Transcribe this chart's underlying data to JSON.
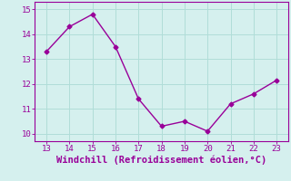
{
  "x": [
    13,
    14,
    15,
    16,
    17,
    18,
    19,
    20,
    21,
    22,
    23
  ],
  "y": [
    13.3,
    14.3,
    14.8,
    13.5,
    11.4,
    10.3,
    10.5,
    10.1,
    11.2,
    11.6,
    12.15
  ],
  "xlim": [
    12.5,
    23.5
  ],
  "ylim": [
    9.7,
    15.3
  ],
  "xticks": [
    13,
    14,
    15,
    16,
    17,
    18,
    19,
    20,
    21,
    22,
    23
  ],
  "yticks": [
    10,
    11,
    12,
    13,
    14,
    15
  ],
  "xlabel": "Windchill (Refroidissement éolien,°C)",
  "line_color": "#990099",
  "bg_color": "#d5f0ee",
  "grid_color": "#b0ddd8",
  "marker": "D",
  "markersize": 2.5,
  "linewidth": 1.0,
  "xlabel_fontsize": 7.5,
  "tick_fontsize": 6.5
}
